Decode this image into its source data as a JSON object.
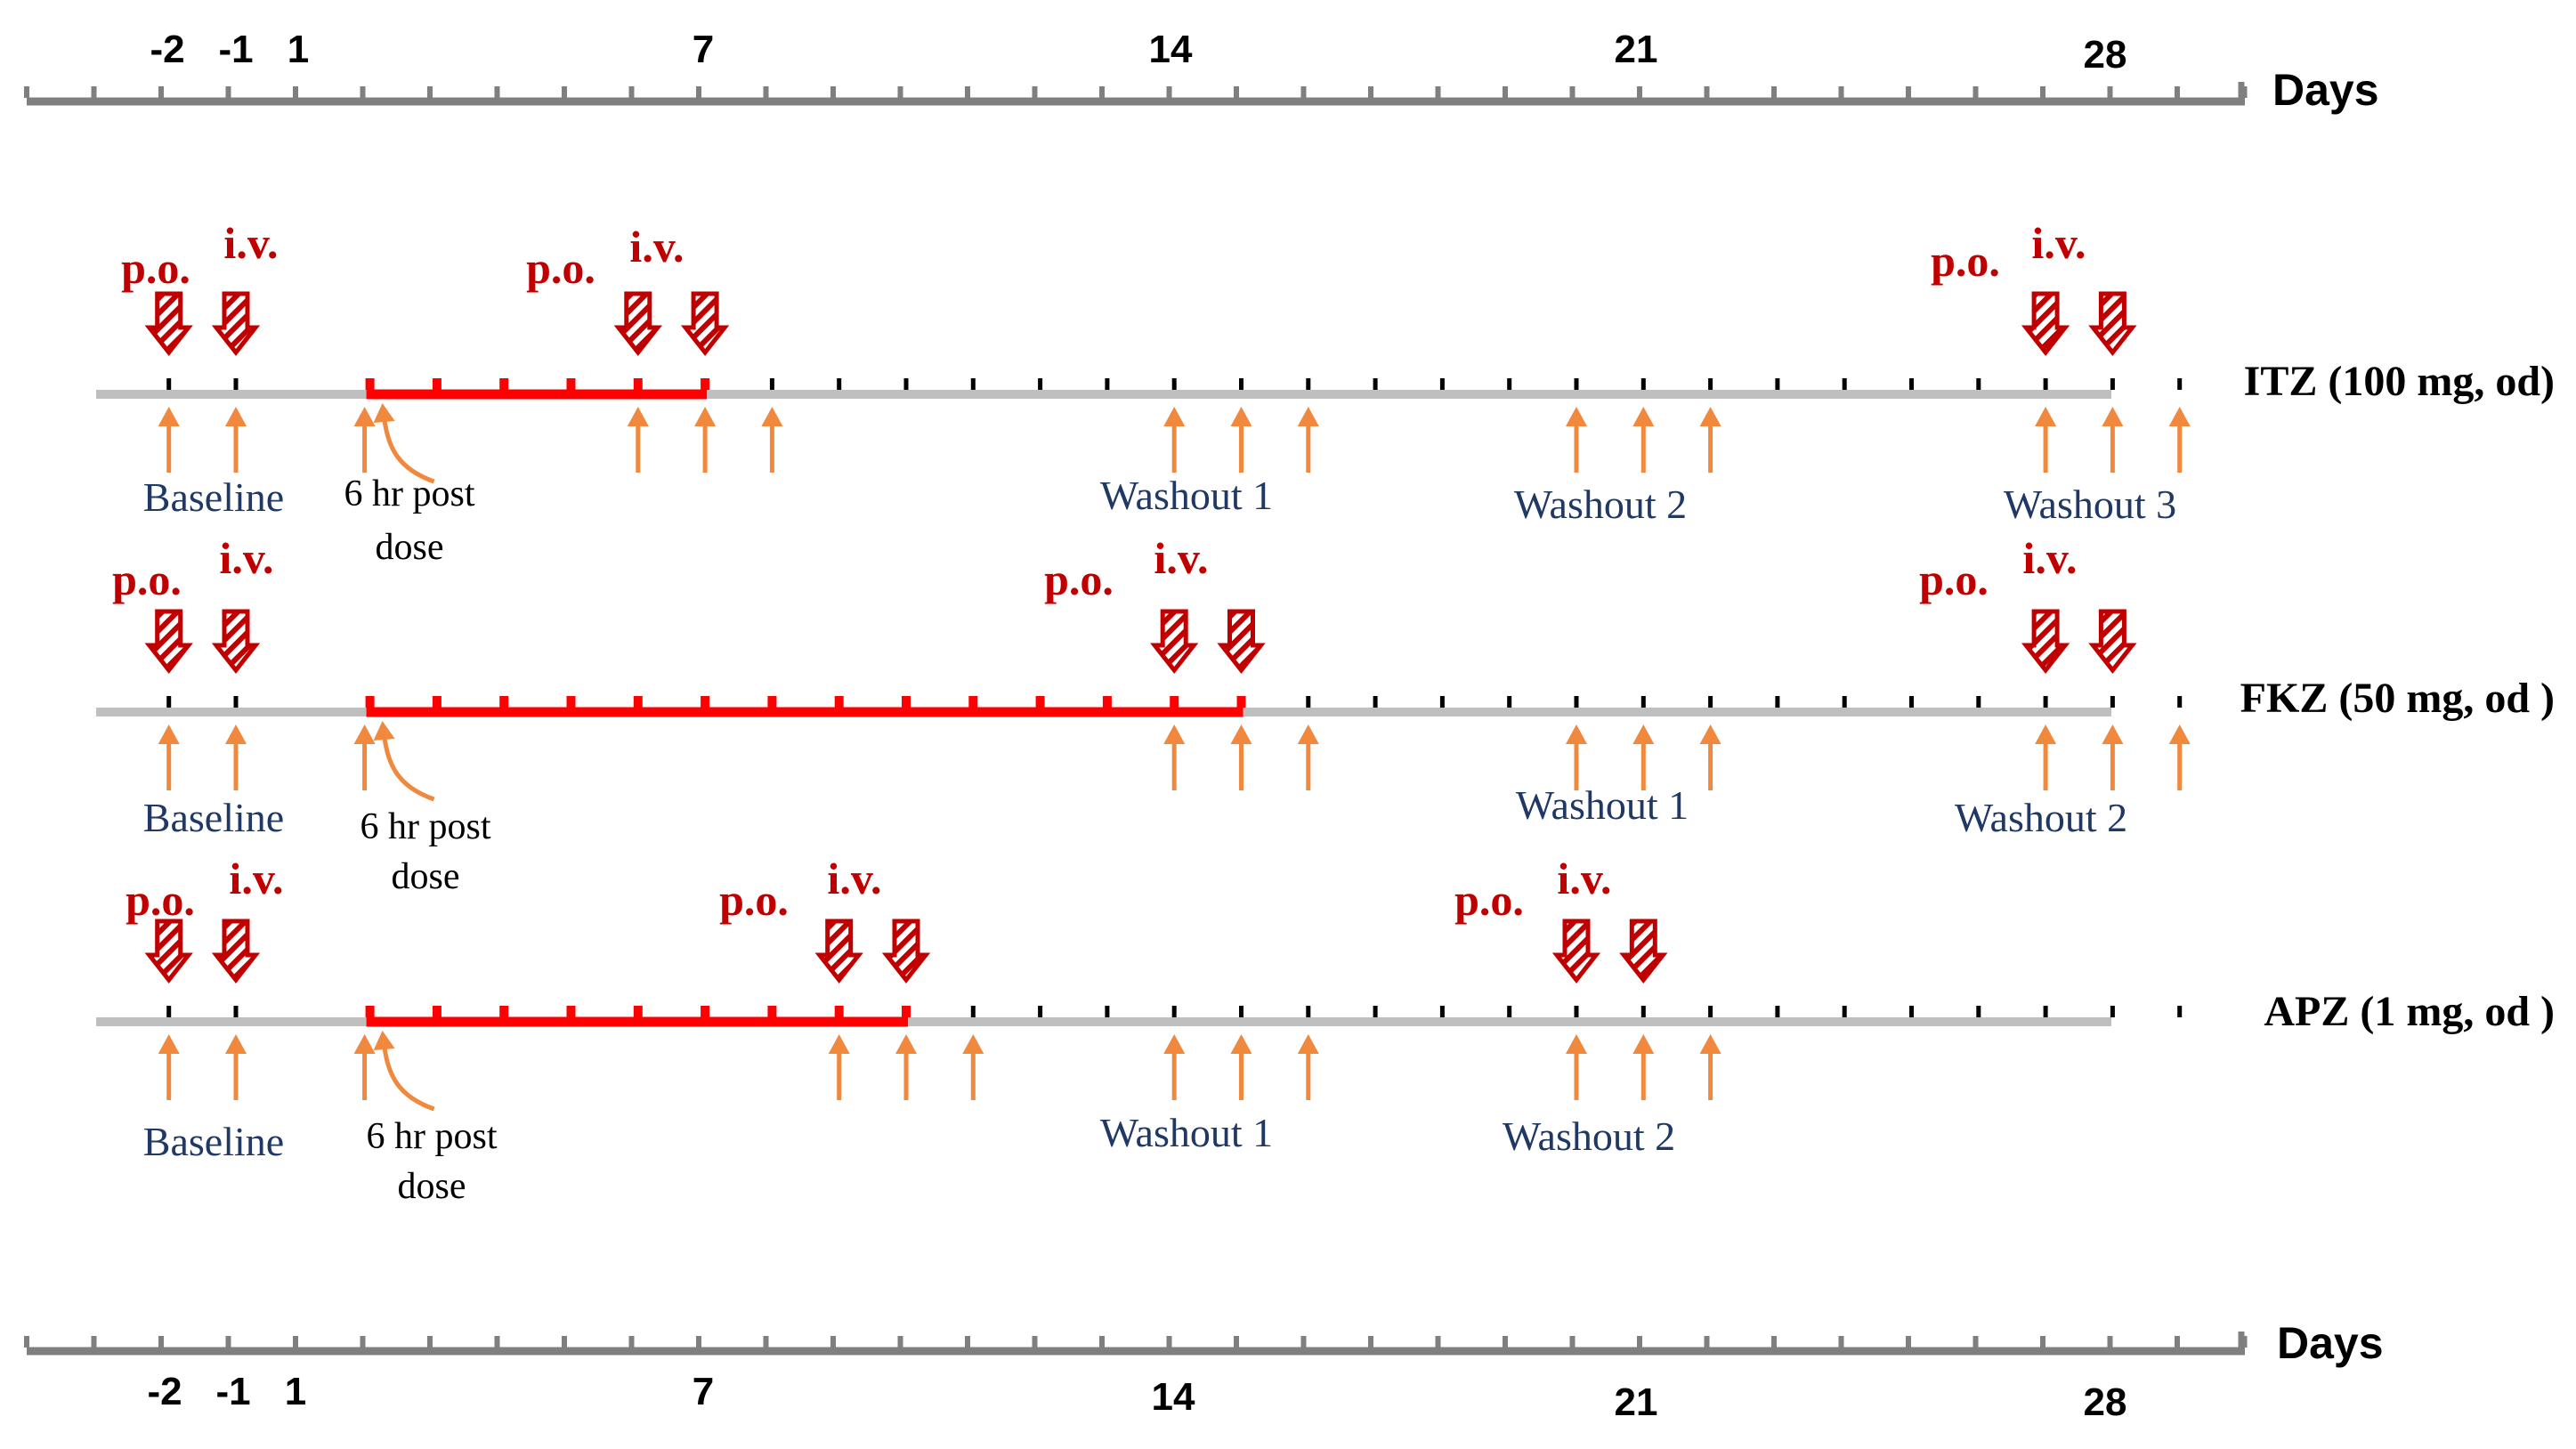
{
  "days_label": "Days",
  "axis_day_labels": [
    "-2",
    "-1",
    "1",
    "7",
    "14",
    "21",
    "28"
  ],
  "route_labels": {
    "oral": "p.o.",
    "iv": "i.v."
  },
  "note_label": [
    "6 hr post",
    "dose"
  ],
  "baseline_label": "Baseline",
  "colors": {
    "axis": "#7f7f7f",
    "timeline": "#bfbfbf",
    "dosing": "#ff0000",
    "sampling_arrow": "#f0883e",
    "route_text": "#c00000",
    "phase_text": "#1f3864"
  },
  "icons": {
    "admin": "hatched-down-arrow-icon",
    "sampling": "up-arrow-icon",
    "pointer": "curved-pointer-icon"
  },
  "rows": [
    {
      "drug": "ITZ (100 mg, od)",
      "dosing_days": [
        1,
        6
      ],
      "administration_days": [
        -2,
        -1,
        5,
        6,
        26,
        27
      ],
      "sampling_days": [
        -2,
        -1,
        0,
        5,
        6,
        7,
        13,
        14,
        15,
        19,
        20,
        21,
        26,
        27,
        28
      ],
      "phases": [
        "Baseline",
        "Washout 1",
        "Washout 2",
        "Washout 3"
      ]
    },
    {
      "drug": "FKZ (50 mg, od )",
      "dosing_days": [
        1,
        14
      ],
      "administration_days": [
        -2,
        -1,
        13,
        14,
        26,
        27
      ],
      "sampling_days": [
        -2,
        -1,
        0,
        13,
        14,
        15,
        19,
        20,
        21,
        26,
        27,
        28
      ],
      "phases": [
        "Baseline",
        "Washout 1",
        "Washout 2"
      ]
    },
    {
      "drug": "APZ (1 mg, od )",
      "dosing_days": [
        1,
        9
      ],
      "administration_days": [
        -2,
        -1,
        8,
        9,
        19,
        20
      ],
      "sampling_days": [
        -2,
        -1,
        0,
        8,
        9,
        10,
        13,
        14,
        15,
        19,
        20,
        21
      ],
      "phases": [
        "Baseline",
        "Washout 1",
        "Washout 2"
      ]
    }
  ]
}
